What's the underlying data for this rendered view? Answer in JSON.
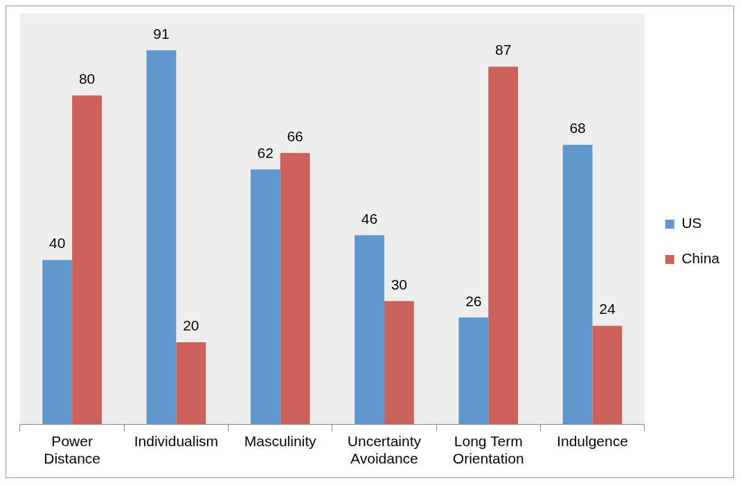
{
  "chart_data": {
    "type": "bar",
    "categories": [
      "Power Distance",
      "Individualism",
      "Masculinity",
      "Uncertainty Avoidance",
      "Long Term Orientation",
      "Indulgence"
    ],
    "series": [
      {
        "name": "US",
        "color": "#6097cc",
        "values": [
          40,
          91,
          62,
          46,
          26,
          68
        ]
      },
      {
        "name": "China",
        "color": "#cd625c",
        "values": [
          80,
          20,
          66,
          30,
          87,
          24
        ]
      }
    ],
    "data_labels": true,
    "legend": "right",
    "grid": false
  }
}
